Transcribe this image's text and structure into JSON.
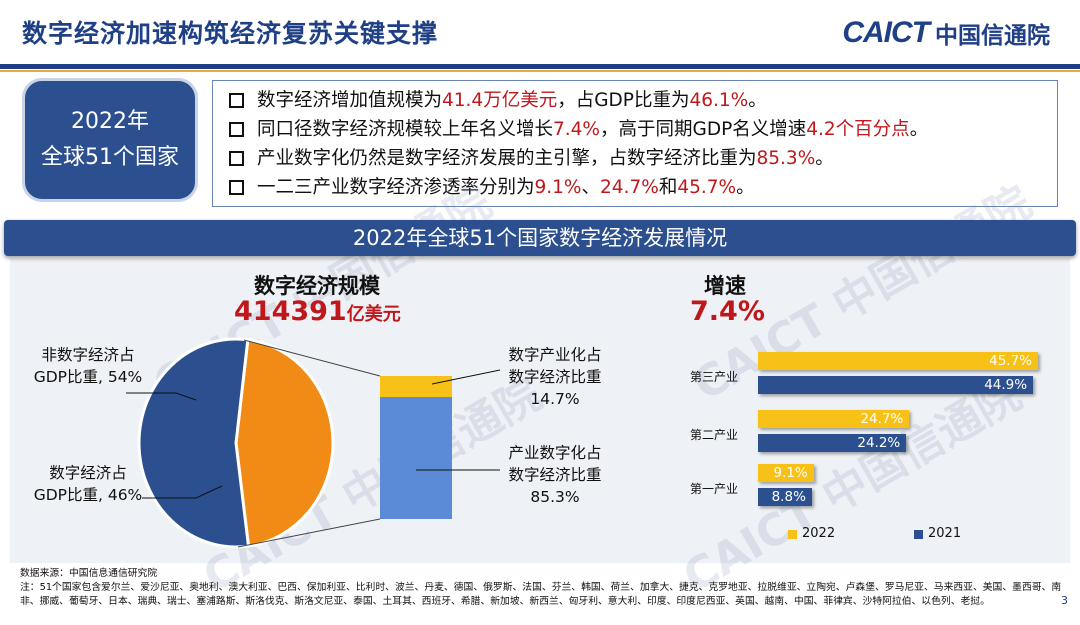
{
  "header": {
    "title": "数字经济加速构筑经济复苏关键支撑",
    "logo_en": "CAICT",
    "logo_cn": "中国信通院"
  },
  "badge": {
    "line1": "2022年",
    "line2": "全球51个国家"
  },
  "bullets": [
    {
      "parts": [
        {
          "t": "数字经济增加值规模为"
        },
        {
          "t": "41.4万亿美元",
          "red": true
        },
        {
          "t": "，占GDP比重为"
        },
        {
          "t": "46.1%",
          "red": true
        },
        {
          "t": "。"
        }
      ]
    },
    {
      "parts": [
        {
          "t": "同口径数字经济规模较上年名义增长"
        },
        {
          "t": "7.4%",
          "red": true
        },
        {
          "t": "，高于同期GDP名义增速"
        },
        {
          "t": "4.2个百分点",
          "red": true
        },
        {
          "t": "。"
        }
      ]
    },
    {
      "parts": [
        {
          "t": "产业数字化仍然是数字经济发展的主引擎，占数字经济比重为"
        },
        {
          "t": "85.3%",
          "red": true
        },
        {
          "t": "。"
        }
      ]
    },
    {
      "parts": [
        {
          "t": "一二三产业数字经济渗透率分别为"
        },
        {
          "t": "9.1%",
          "red": true
        },
        {
          "t": "、"
        },
        {
          "t": "24.7%",
          "red": true
        },
        {
          "t": "和"
        },
        {
          "t": "45.7%",
          "red": true
        },
        {
          "t": "。"
        }
      ]
    }
  ],
  "banner": "2022年全球51个国家数字经济发展情况",
  "scale": {
    "label": "数字经济规模",
    "value": "414391",
    "unit": "亿美元"
  },
  "growth": {
    "label": "增速",
    "value": "7.4%"
  },
  "watermark": "CAICT 中国信通院",
  "colors": {
    "navy": "#2c4f8f",
    "orange": "#f28b16",
    "yellow": "#f7c118",
    "lightblue": "#5b8ad6",
    "red": "#c0171b"
  },
  "chart_data": [
    {
      "type": "pie",
      "categories": [
        "非数字经济占GDP比重",
        "数字经济占GDP比重"
      ],
      "values": [
        54,
        46
      ],
      "labels": [
        "非数字经济占\nGDP比重, 54%",
        "数字经济占\nGDP比重, 46%"
      ]
    },
    {
      "type": "bar",
      "categories": [
        "数字产业化占数字经济比重",
        "产业数字化占数字经济比重"
      ],
      "values": [
        14.7,
        85.3
      ],
      "labels": [
        "数字产业化占\n数字经济比重\n14.7%",
        "产业数字化占\n数字经济比重\n85.3%"
      ]
    },
    {
      "type": "bar",
      "orientation": "horizontal",
      "categories": [
        "第三产业",
        "第二产业",
        "第一产业"
      ],
      "series": [
        {
          "name": "2022",
          "values": [
            45.7,
            24.7,
            9.1
          ],
          "labels": [
            "45.7%",
            "24.7%",
            "9.1%"
          ]
        },
        {
          "name": "2021",
          "values": [
            44.9,
            24.2,
            8.8
          ],
          "labels": [
            "44.9%",
            "24.2%",
            "8.8%"
          ]
        }
      ],
      "legend": "bottom"
    }
  ],
  "footer": {
    "source": "数据来源：中国信息通信研究院",
    "note": "注：51个国家包含爱尔兰、爱沙尼亚、奥地利、澳大利亚、巴西、保加利亚、比利时、波兰、丹麦、德国、俄罗斯、法国、芬兰、韩国、荷兰、加拿大、捷克、克罗地亚、拉脱维亚、立陶宛、卢森堡、罗马尼亚、马来西亚、美国、墨西哥、南非、挪威、葡萄牙、日本、瑞典、瑞士、塞浦路斯、斯洛伐克、斯洛文尼亚、泰国、土耳其、西班牙、希腊、新加坡、新西兰、匈牙利、意大利、印度、印度尼西亚、英国、越南、中国、菲律宾、沙特阿拉伯、以色列、老挝。",
    "page": "3"
  }
}
